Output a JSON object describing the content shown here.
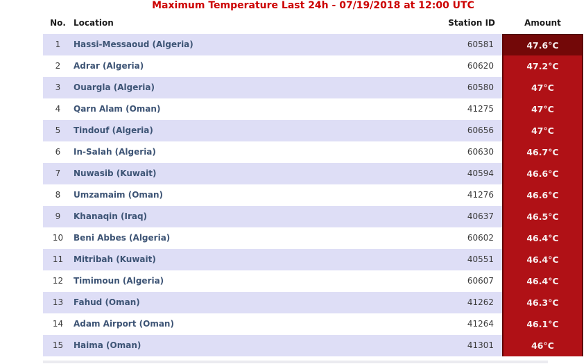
{
  "title": "Maximum Temperature Last 24h - 07/19/2018 at 12:00 UTC",
  "chart_data": {
    "type": "table",
    "title": "Maximum Temperature Last 24h - 07/19/2018 at 12:00 UTC",
    "columns": [
      "No.",
      "Location",
      "Station ID",
      "Amount"
    ],
    "unit": "°C",
    "rows": [
      {
        "no": "1",
        "location": "Hassi-Messaoud (Algeria)",
        "station_id": "60581",
        "amount": "47.6°C",
        "value_c": 47.6,
        "highlight": true
      },
      {
        "no": "2",
        "location": "Adrar (Algeria)",
        "station_id": "60620",
        "amount": "47.2°C",
        "value_c": 47.2,
        "highlight": false
      },
      {
        "no": "3",
        "location": "Ouargla (Algeria)",
        "station_id": "60580",
        "amount": "47°C",
        "value_c": 47.0,
        "highlight": false
      },
      {
        "no": "4",
        "location": "Qarn Alam (Oman)",
        "station_id": "41275",
        "amount": "47°C",
        "value_c": 47.0,
        "highlight": false
      },
      {
        "no": "5",
        "location": "Tindouf (Algeria)",
        "station_id": "60656",
        "amount": "47°C",
        "value_c": 47.0,
        "highlight": false
      },
      {
        "no": "6",
        "location": "In-Salah (Algeria)",
        "station_id": "60630",
        "amount": "46.7°C",
        "value_c": 46.7,
        "highlight": false
      },
      {
        "no": "7",
        "location": "Nuwasib (Kuwait)",
        "station_id": "40594",
        "amount": "46.6°C",
        "value_c": 46.6,
        "highlight": false
      },
      {
        "no": "8",
        "location": "Umzamaim (Oman)",
        "station_id": "41276",
        "amount": "46.6°C",
        "value_c": 46.6,
        "highlight": false
      },
      {
        "no": "9",
        "location": "Khanaqin (Iraq)",
        "station_id": "40637",
        "amount": "46.5°C",
        "value_c": 46.5,
        "highlight": false
      },
      {
        "no": "10",
        "location": "Beni Abbes (Algeria)",
        "station_id": "60602",
        "amount": "46.4°C",
        "value_c": 46.4,
        "highlight": false
      },
      {
        "no": "11",
        "location": "Mitribah (Kuwait)",
        "station_id": "40551",
        "amount": "46.4°C",
        "value_c": 46.4,
        "highlight": false
      },
      {
        "no": "12",
        "location": "Timimoun (Algeria)",
        "station_id": "60607",
        "amount": "46.4°C",
        "value_c": 46.4,
        "highlight": false
      },
      {
        "no": "13",
        "location": "Fahud (Oman)",
        "station_id": "41262",
        "amount": "46.3°C",
        "value_c": 46.3,
        "highlight": false
      },
      {
        "no": "14",
        "location": "Adam Airport (Oman)",
        "station_id": "41264",
        "amount": "46.1°C",
        "value_c": 46.1,
        "highlight": false
      },
      {
        "no": "15",
        "location": "Haima (Oman)",
        "station_id": "41301",
        "amount": "46°C",
        "value_c": 46.0,
        "highlight": false
      }
    ]
  },
  "colors": {
    "title_red": "#cc0000",
    "amount_bg": "#b01116",
    "amount_bg_hottest": "#730808",
    "amount_border": "#5e0303",
    "amount_text": "#f7eeee",
    "row_alt_bg": "#dedef6",
    "row_bg": "#ffffff",
    "location_text": "#3d5475",
    "number_text": "#3a3a3a",
    "header_text": "#1b1b1b"
  }
}
